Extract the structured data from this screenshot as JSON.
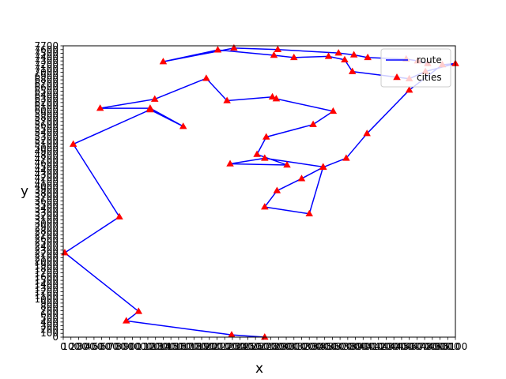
{
  "chart_data": {
    "type": "line",
    "title": "",
    "xlabel": "x",
    "ylabel": "y",
    "xlim": [
      0,
      5100
    ],
    "ylim": [
      0,
      7700
    ],
    "x_ticks": [
      0,
      100,
      200,
      300,
      400,
      500,
      600,
      700,
      800,
      900,
      1000,
      1100,
      1200,
      1300,
      1400,
      1500,
      1600,
      1700,
      1800,
      1900,
      2000,
      2100,
      2200,
      2300,
      2400,
      2500,
      2600,
      2700,
      2800,
      2900,
      3000,
      3100,
      3200,
      3300,
      3400,
      3500,
      3600,
      3700,
      3800,
      3900,
      4000,
      4100,
      4200,
      4300,
      4400,
      4500,
      4600,
      4700,
      4800,
      4900,
      5000,
      5100
    ],
    "y_ticks": [
      0,
      100,
      200,
      300,
      400,
      500,
      600,
      700,
      800,
      900,
      1000,
      1100,
      1200,
      1300,
      1400,
      1500,
      1600,
      1700,
      1800,
      1900,
      2000,
      2100,
      2200,
      2300,
      2400,
      2500,
      2600,
      2700,
      2800,
      2900,
      3000,
      3100,
      3200,
      3300,
      3400,
      3500,
      3600,
      3700,
      3800,
      3900,
      4000,
      4100,
      4200,
      4300,
      4400,
      4500,
      4600,
      4700,
      4800,
      4900,
      5000,
      5100,
      5200,
      5300,
      5400,
      5500,
      5600,
      5700,
      5800,
      5900,
      6000,
      6100,
      6200,
      6300,
      6400,
      6500,
      6600,
      6700,
      6800,
      6900,
      7000,
      7100,
      7200,
      7300,
      7400,
      7500,
      7600,
      7700
    ],
    "legend_position": "top-right",
    "series": [
      {
        "name": "route",
        "type": "line",
        "color": "#0000ff",
        "x": [
          2620,
          2190,
          820,
          980,
          20,
          730,
          130,
          1130,
          1560,
          1130,
          480,
          1190,
          1860,
          2130,
          2720,
          2770,
          3510,
          3250,
          2640,
          2520,
          2910,
          2170,
          2620,
          3380,
          3200,
          2620,
          2780,
          3100,
          3380,
          3680,
          3950,
          4500,
          4930,
          5100,
          4710,
          4500,
          3760,
          3660,
          3450,
          3000,
          2740,
          2010,
          1300,
          2220,
          2790,
          3580,
          3780,
          3960,
          4460,
          4610,
          4740
        ],
        "y": [
          0,
          60,
          430,
          680,
          2230,
          3180,
          5100,
          6010,
          5570,
          6050,
          6050,
          6290,
          6840,
          6250,
          6350,
          6300,
          5970,
          5620,
          5290,
          4830,
          4550,
          4580,
          4730,
          4500,
          3260,
          3440,
          3870,
          4190,
          4490,
          4730,
          5380,
          6530,
          7200,
          7230,
          7020,
          6830,
          7020,
          7330,
          7420,
          7390,
          7450,
          7590,
          7280,
          7640,
          7600,
          7510,
          7460,
          7390,
          7350,
          7300,
          7230
        ]
      },
      {
        "name": "cities",
        "type": "scatter",
        "color": "#ff0000",
        "x": [
          2620,
          2190,
          820,
          980,
          20,
          730,
          130,
          1130,
          1560,
          1130,
          480,
          1190,
          1860,
          2130,
          2720,
          2770,
          3510,
          3250,
          2640,
          2520,
          2910,
          2170,
          2620,
          3380,
          3200,
          2620,
          2780,
          3100,
          3380,
          3680,
          3950,
          4500,
          4930,
          5100,
          4710,
          4500,
          3760,
          3660,
          3450,
          3000,
          2740,
          2010,
          1300,
          2220,
          2790,
          3580,
          3780,
          3960,
          4460,
          4610,
          4740
        ],
        "y": [
          0,
          60,
          430,
          680,
          2230,
          3180,
          5100,
          6010,
          5570,
          6050,
          6050,
          6290,
          6840,
          6250,
          6350,
          6300,
          5970,
          5620,
          5290,
          4830,
          4550,
          4580,
          4730,
          4500,
          3260,
          3440,
          3870,
          4190,
          4490,
          4730,
          5380,
          6530,
          7200,
          7230,
          7020,
          6830,
          7020,
          7330,
          7420,
          7390,
          7450,
          7590,
          7280,
          7640,
          7600,
          7510,
          7460,
          7390,
          7350,
          7300,
          7230
        ]
      }
    ]
  }
}
